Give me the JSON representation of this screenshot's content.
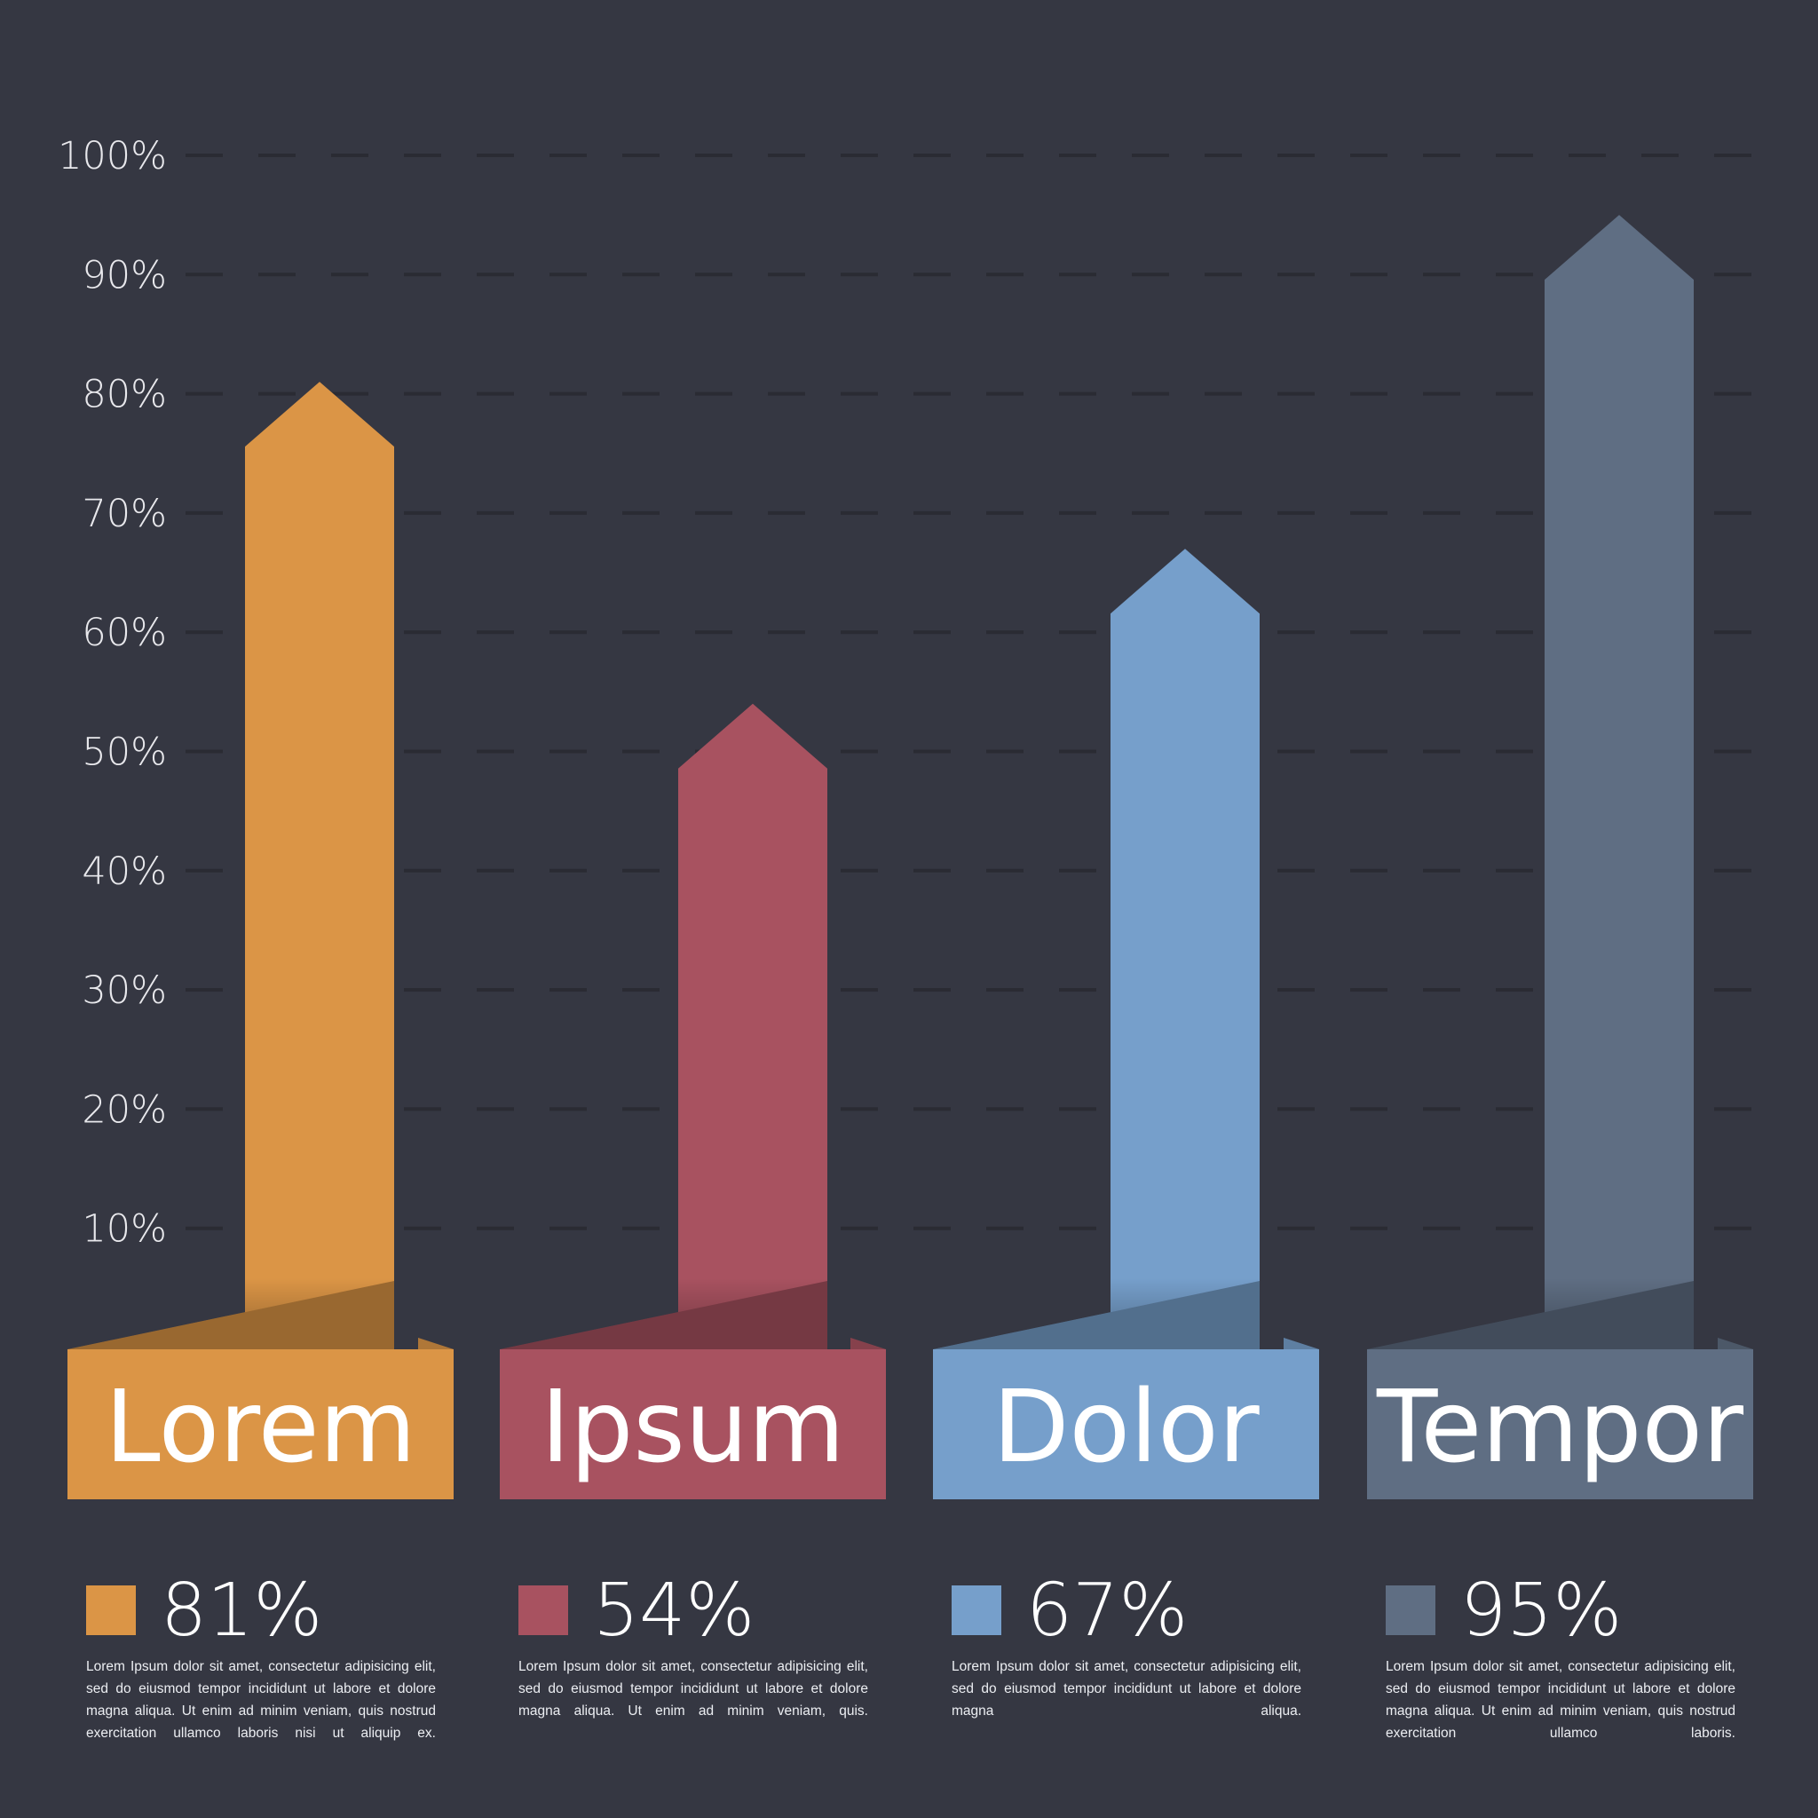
{
  "chart_data": {
    "type": "bar",
    "categories": [
      "Lorem",
      "Ipsum",
      "Dolor",
      "Tempor"
    ],
    "values": [
      81,
      54,
      67,
      95
    ],
    "value_labels": [
      "81%",
      "54%",
      "67%",
      "95%"
    ],
    "colors": [
      "#DB9546",
      "#A85260",
      "#769FCB",
      "#5F6E83"
    ],
    "ylim": [
      0,
      100
    ],
    "yticks": [
      "10%",
      "20%",
      "30%",
      "40%",
      "50%",
      "60%",
      "70%",
      "80%",
      "90%",
      "100%"
    ],
    "grid": true,
    "bar_shape": "arrow",
    "descriptions": [
      "Lorem Ipsum dolor sit amet, consectetur adipisicing elit, sed do eiusmod tempor incididunt ut labore et dolore magna aliqua. Ut enim ad minim veniam, quis nostrud exercitation ullamco laboris nisi ut aliquip ex.",
      "Lorem Ipsum dolor sit amet, consectetur adipisicing elit, sed do eiusmod tempor incididunt ut labore et dolore magna aliqua. Ut enim ad minim veniam, quis.",
      "Lorem Ipsum dolor sit amet, consectetur adipisicing elit, sed do eiusmod tempor incididunt ut labore et dolore magna aliqua.",
      "Lorem Ipsum dolor sit amet, consectetur adipisicing elit, sed do eiusmod tempor incididunt ut labore et dolore magna aliqua. Ut enim ad minim veniam, quis nostrud exercitation ullamco laboris."
    ]
  },
  "colors": {
    "background": "#353742",
    "grid": "#2A2B33"
  }
}
